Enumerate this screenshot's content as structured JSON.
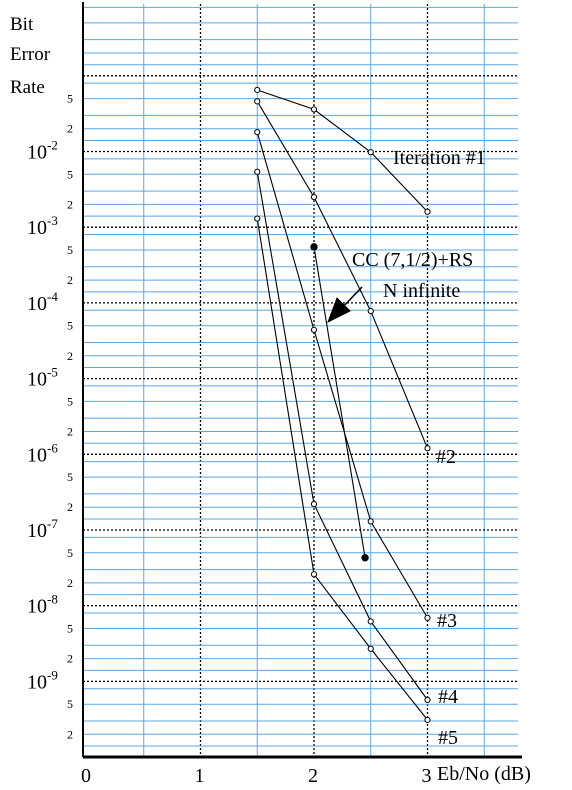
{
  "chart_data": {
    "type": "line",
    "title": "",
    "ylabel_lines": [
      "Bit",
      "Error",
      "Rate"
    ],
    "xlabel": "Eb/No (dB)",
    "x_ticks": [
      "0",
      "1",
      "2",
      "3"
    ],
    "xlim": [
      0,
      3.8
    ],
    "y_scale": "log",
    "ylim": [
      1e-10,
      0.1
    ],
    "y_ticks": [
      {
        "base": "10",
        "exp": "-2",
        "value": 0.01
      },
      {
        "base": "10",
        "exp": "-3",
        "value": 0.001
      },
      {
        "base": "10",
        "exp": "-4",
        "value": 0.0001
      },
      {
        "base": "10",
        "exp": "-5",
        "value": 1e-05
      },
      {
        "base": "10",
        "exp": "-6",
        "value": 1e-06
      },
      {
        "base": "10",
        "exp": "-7",
        "value": 1e-07
      },
      {
        "base": "10",
        "exp": "-8",
        "value": 1e-08
      },
      {
        "base": "10",
        "exp": "-9",
        "value": 1e-09
      }
    ],
    "y_minor_ticks": [
      {
        "label": "5",
        "value": 0.05
      },
      {
        "label": "2",
        "value": 0.02
      },
      {
        "label": "5",
        "value": 0.005
      },
      {
        "label": "2",
        "value": 0.002
      },
      {
        "label": "5",
        "value": 0.0005
      },
      {
        "label": "2",
        "value": 0.0002
      },
      {
        "label": "5",
        "value": 5e-05
      },
      {
        "label": "2",
        "value": 2e-05
      },
      {
        "label": "5",
        "value": 5e-06
      },
      {
        "label": "2",
        "value": 2e-06
      },
      {
        "label": "5",
        "value": 5e-07
      },
      {
        "label": "2",
        "value": 2e-07
      },
      {
        "label": "5",
        "value": 5e-08
      },
      {
        "label": "2",
        "value": 2e-08
      },
      {
        "label": "5",
        "value": 5e-09
      },
      {
        "label": "2",
        "value": 2e-09
      },
      {
        "label": "5",
        "value": 5e-10
      },
      {
        "label": "2",
        "value": 2e-10
      }
    ],
    "grid": true,
    "series": [
      {
        "name": "Iteration #1",
        "x": [
          1.5,
          2.0,
          2.5,
          3.0
        ],
        "y": [
          0.065,
          0.036,
          0.0098,
          0.0016
        ]
      },
      {
        "name": "#2",
        "x": [
          1.5,
          2.0,
          2.5,
          3.0
        ],
        "y": [
          0.046,
          0.0025,
          7.8e-05,
          1.2e-06
        ]
      },
      {
        "name": "#3",
        "x": [
          1.5,
          2.0,
          2.5,
          3.0
        ],
        "y": [
          0.018,
          4.4e-05,
          1.3e-07,
          6.9e-09
        ]
      },
      {
        "name": "#4",
        "x": [
          1.5,
          2.0,
          2.5,
          3.0
        ],
        "y": [
          0.0054,
          2.2e-07,
          6.2e-09,
          5.7e-10
        ]
      },
      {
        "name": "#5",
        "x": [
          1.5,
          2.0,
          2.5,
          3.0
        ],
        "y": [
          0.0013,
          2.6e-08,
          2.7e-09,
          3.1e-10
        ]
      },
      {
        "name": "CC (7,1/2)+RS",
        "subtitle": "N infinite",
        "marker": "filled",
        "x": [
          2.0,
          2.45
        ],
        "y": [
          0.00055,
          4.3e-08
        ]
      }
    ],
    "annotations": {
      "cc_line1": "CC (7,1/2)+RS",
      "cc_line2": "N infinite"
    }
  }
}
